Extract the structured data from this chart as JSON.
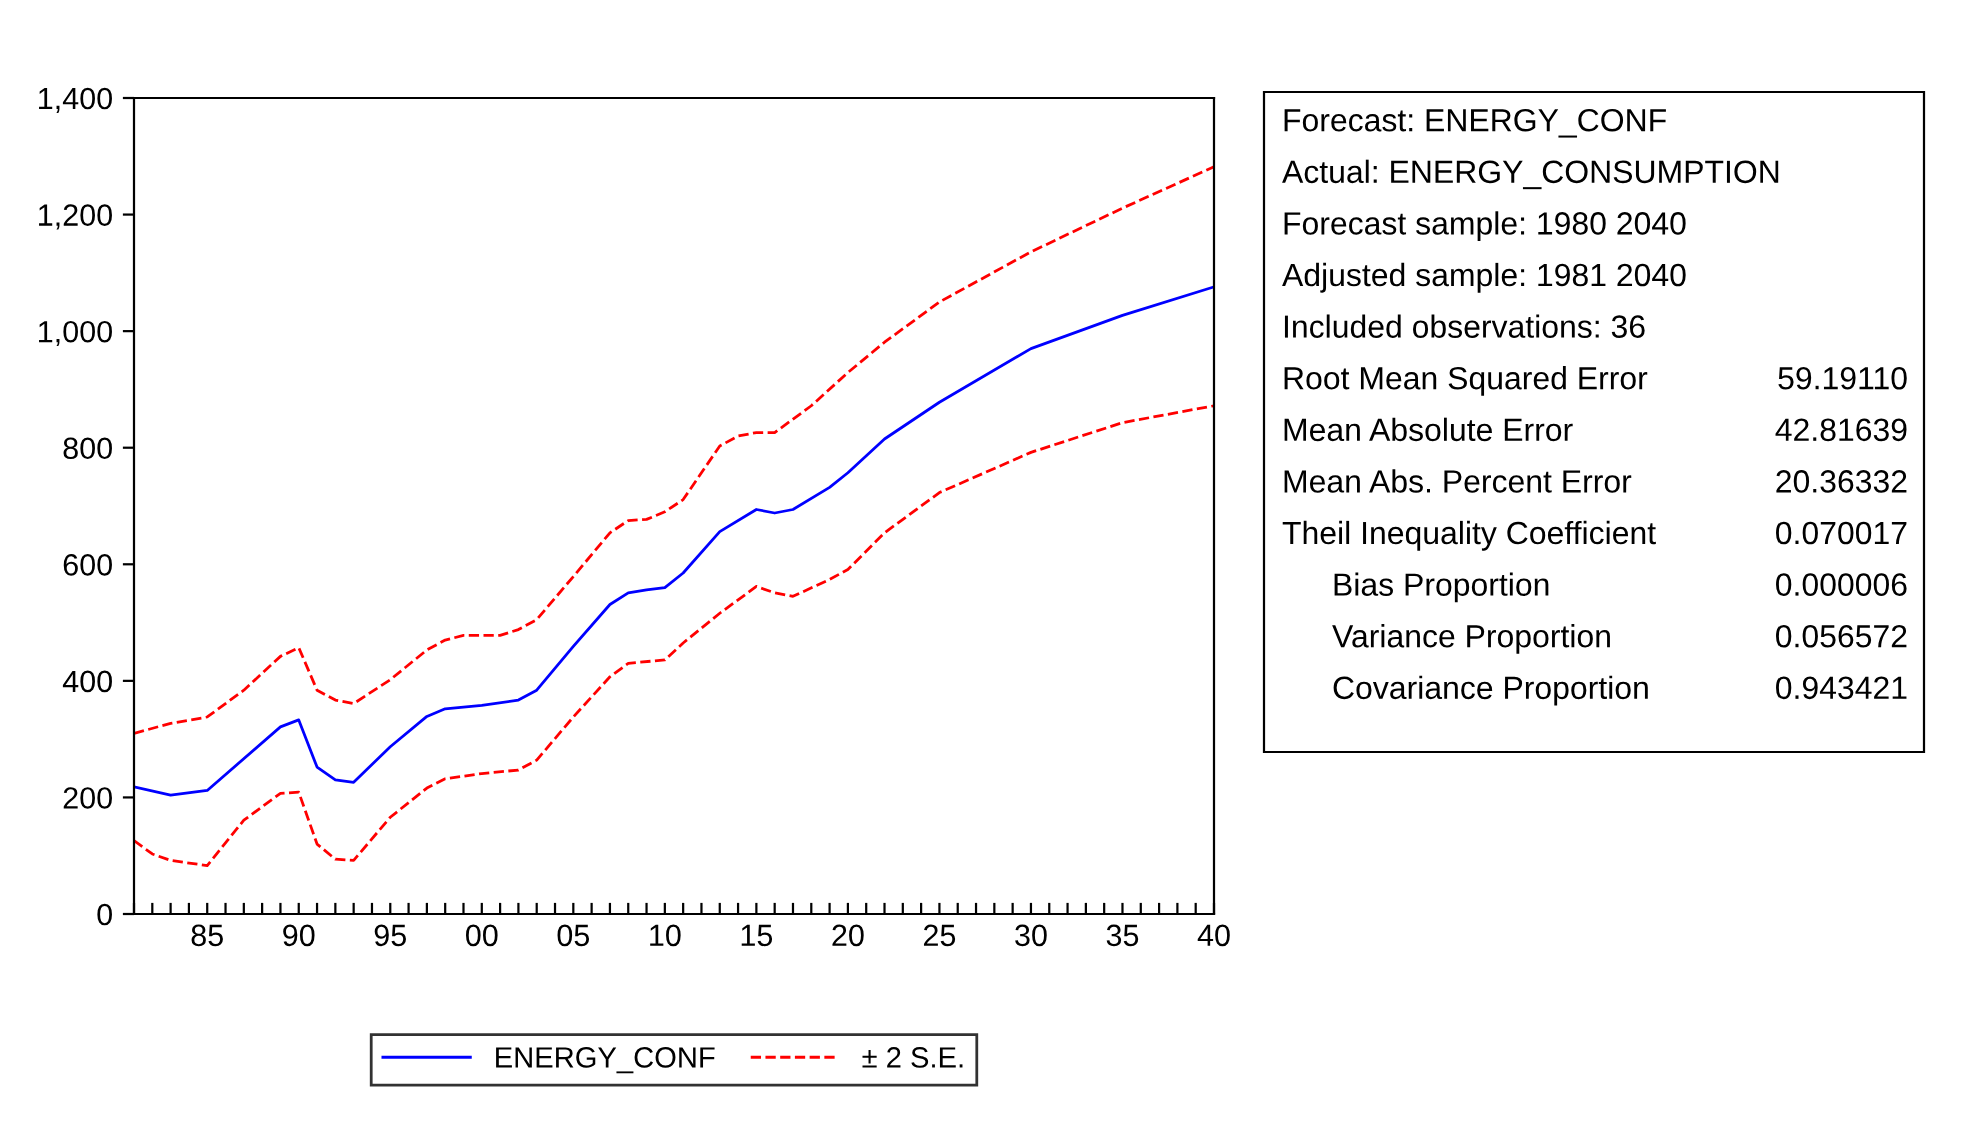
{
  "chart_data": {
    "type": "line",
    "xlim": [
      1981,
      2040
    ],
    "ylim": [
      0,
      1400
    ],
    "xticks": [
      {
        "value": 1981,
        "label": null
      },
      {
        "value": 1982,
        "label": null
      },
      {
        "value": 1983,
        "label": null
      },
      {
        "value": 1984,
        "label": null
      },
      {
        "value": 1985,
        "label": "85"
      },
      {
        "value": 1986,
        "label": null
      },
      {
        "value": 1987,
        "label": null
      },
      {
        "value": 1988,
        "label": null
      },
      {
        "value": 1989,
        "label": null
      },
      {
        "value": 1990,
        "label": "90"
      },
      {
        "value": 1991,
        "label": null
      },
      {
        "value": 1992,
        "label": null
      },
      {
        "value": 1993,
        "label": null
      },
      {
        "value": 1994,
        "label": null
      },
      {
        "value": 1995,
        "label": "95"
      },
      {
        "value": 1996,
        "label": null
      },
      {
        "value": 1997,
        "label": null
      },
      {
        "value": 1998,
        "label": null
      },
      {
        "value": 1999,
        "label": null
      },
      {
        "value": 2000,
        "label": "00"
      },
      {
        "value": 2001,
        "label": null
      },
      {
        "value": 2002,
        "label": null
      },
      {
        "value": 2003,
        "label": null
      },
      {
        "value": 2004,
        "label": null
      },
      {
        "value": 2005,
        "label": "05"
      },
      {
        "value": 2006,
        "label": null
      },
      {
        "value": 2007,
        "label": null
      },
      {
        "value": 2008,
        "label": null
      },
      {
        "value": 2009,
        "label": null
      },
      {
        "value": 2010,
        "label": "10"
      },
      {
        "value": 2011,
        "label": null
      },
      {
        "value": 2012,
        "label": null
      },
      {
        "value": 2013,
        "label": null
      },
      {
        "value": 2014,
        "label": null
      },
      {
        "value": 2015,
        "label": "15"
      },
      {
        "value": 2016,
        "label": null
      },
      {
        "value": 2017,
        "label": null
      },
      {
        "value": 2018,
        "label": null
      },
      {
        "value": 2019,
        "label": null
      },
      {
        "value": 2020,
        "label": "20"
      },
      {
        "value": 2021,
        "label": null
      },
      {
        "value": 2022,
        "label": null
      },
      {
        "value": 2023,
        "label": null
      },
      {
        "value": 2024,
        "label": null
      },
      {
        "value": 2025,
        "label": "25"
      },
      {
        "value": 2026,
        "label": null
      },
      {
        "value": 2027,
        "label": null
      },
      {
        "value": 2028,
        "label": null
      },
      {
        "value": 2029,
        "label": null
      },
      {
        "value": 2030,
        "label": "30"
      },
      {
        "value": 2031,
        "label": null
      },
      {
        "value": 2032,
        "label": null
      },
      {
        "value": 2033,
        "label": null
      },
      {
        "value": 2034,
        "label": null
      },
      {
        "value": 2035,
        "label": "35"
      },
      {
        "value": 2036,
        "label": null
      },
      {
        "value": 2037,
        "label": null
      },
      {
        "value": 2038,
        "label": null
      },
      {
        "value": 2039,
        "label": null
      },
      {
        "value": 2040,
        "label": "40"
      }
    ],
    "yticks": [
      0,
      200,
      400,
      600,
      800,
      {
        "value": 1000,
        "label": "1,000"
      },
      {
        "value": 1200,
        "label": "1,200"
      },
      {
        "value": 1400,
        "label": "1,400"
      }
    ],
    "grid": false,
    "legend": "bottom",
    "marker": "none",
    "series": [
      {
        "name": "ENERGY_CONF",
        "color": "#0000ff",
        "line_style": "solid",
        "x": [
          1981,
          1983,
          1985,
          1989,
          1990,
          1991,
          1992,
          1993,
          1995,
          1997,
          1998,
          2000,
          2002,
          2003,
          2005,
          2007,
          2008,
          2009,
          2010,
          2011,
          2013,
          2015,
          2016,
          2017,
          2019,
          2020,
          2022,
          2025,
          2030,
          2035,
          2040
        ],
        "values": [
          218,
          204,
          212,
          321,
          333,
          252,
          230,
          226,
          287,
          339,
          352,
          358,
          367,
          384,
          459,
          531,
          551,
          556,
          560,
          585,
          656,
          694,
          688,
          694,
          732,
          757,
          815,
          878,
          970,
          1027,
          1076
        ]
      },
      {
        "name": "± 2 S.E.",
        "color": "#ff0000",
        "line_style": "dashed",
        "x": [
          1981,
          1983,
          1985,
          1987,
          1989,
          1990,
          1991,
          1992,
          1993,
          1995,
          1997,
          1998,
          1999,
          2001,
          2002,
          2003,
          2005,
          2007,
          2008,
          2009,
          2010,
          2011,
          2013,
          2014,
          2015,
          2016,
          2018,
          2020,
          2022,
          2025,
          2030,
          2035,
          2040
        ],
        "values": [
          310,
          327,
          338,
          384,
          442,
          457,
          384,
          367,
          361,
          402,
          453,
          470,
          478,
          478,
          488,
          505,
          579,
          654,
          675,
          677,
          690,
          711,
          803,
          820,
          826,
          826,
          872,
          929,
          981,
          1050,
          1136,
          1211,
          1282
        ]
      },
      {
        "color": "#ff0000",
        "line_style": "dashed",
        "x": [
          1981,
          1982,
          1983,
          1985,
          1987,
          1989,
          1990,
          1991,
          1992,
          1993,
          1995,
          1997,
          1998,
          2000,
          2002,
          2003,
          2005,
          2007,
          2008,
          2010,
          2011,
          2013,
          2015,
          2016,
          2017,
          2019,
          2020,
          2022,
          2025,
          2030,
          2035,
          2040
        ],
        "values": [
          126,
          103,
          92,
          83,
          161,
          207,
          209,
          120,
          94,
          92,
          166,
          216,
          232,
          241,
          247,
          264,
          338,
          407,
          430,
          436,
          465,
          516,
          562,
          551,
          545,
          574,
          591,
          654,
          723,
          792,
          843,
          872
        ]
      }
    ],
    "annotations": [
      "Forecast: ENERGY_CONF",
      "Actual: ENERGY_CONSUMPTION",
      "Forecast sample: 1980 2040",
      "Adjusted sample: 1981 2040",
      "Included observations: 36",
      "Root Mean Squared Error",
      "59.19110",
      "Mean Absolute Error",
      "42.81639",
      "Mean Abs. Percent Error",
      "20.36332",
      "Theil Inequality Coefficient",
      "0.070017",
      "Bias Proportion",
      "0.000006",
      "Variance Proportion",
      "0.056572",
      "Covariance Proportion",
      "0.943421"
    ]
  }
}
